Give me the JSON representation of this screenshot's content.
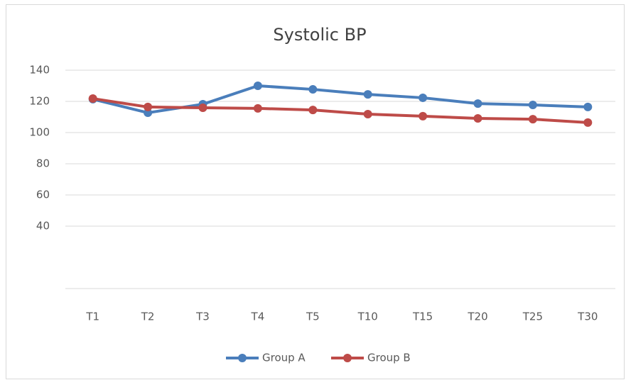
{
  "chart_data": {
    "type": "line",
    "title": "Systolic BP",
    "categories": [
      "T1",
      "T2",
      "T3",
      "T4",
      "T5",
      "T10",
      "T15",
      "T20",
      "T25",
      "T30"
    ],
    "series": [
      {
        "name": "Group A",
        "color": "#4a7ebb",
        "values": [
          121.4,
          112.7,
          118.2,
          130,
          127.7,
          124.5,
          122.3,
          118.6,
          117.7,
          116.4
        ]
      },
      {
        "name": "Group B",
        "color": "#be4b48",
        "values": [
          121.8,
          116.4,
          115.9,
          115.5,
          114.5,
          111.8,
          110.5,
          109.1,
          108.6,
          106.4
        ]
      }
    ],
    "ylim": [
      0,
      140
    ],
    "yticks": [
      40,
      60,
      80,
      100,
      120,
      140
    ],
    "grid": true,
    "legend": "bottom"
  }
}
